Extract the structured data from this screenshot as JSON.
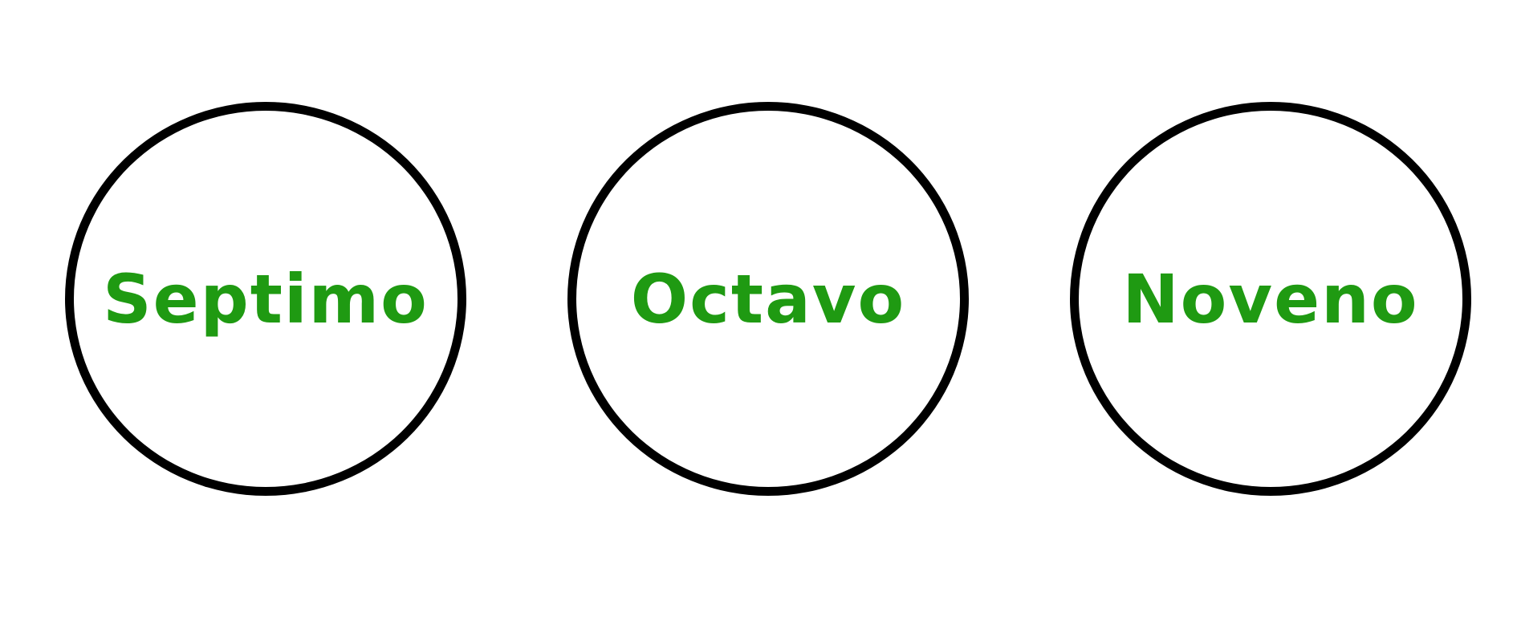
{
  "colors": {
    "text": "#1f9a12",
    "outline": "#000000",
    "background": "#ffffff"
  },
  "circles": [
    {
      "label": "Septimo"
    },
    {
      "label": "Octavo"
    },
    {
      "label": "Noveno"
    }
  ]
}
